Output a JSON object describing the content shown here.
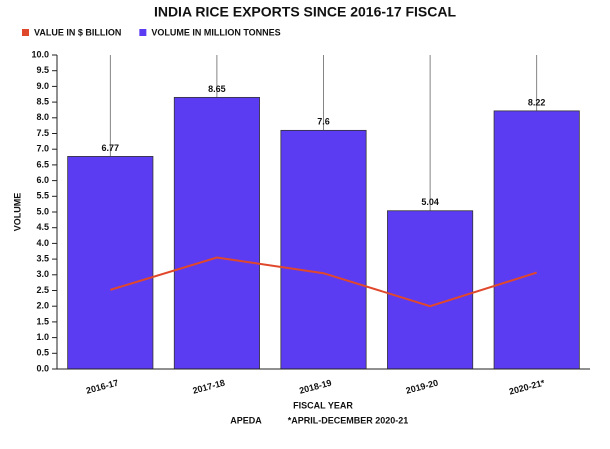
{
  "chart_data": {
    "type": "bar",
    "title": "INDIA RICE EXPORTS SINCE 2016-17 FISCAL",
    "x_label": "FISCAL YEAR",
    "y_label": "VOLUME",
    "footnote_source": "APEDA",
    "footnote": "*APRIL-DECEMBER 2020-21",
    "categories": [
      "2016-17",
      "2017-18",
      "2018-19",
      "2019-20",
      "2020-21*"
    ],
    "series": [
      {
        "name": "VALUE IN $ BILLION",
        "type": "line",
        "color": "#e0482c",
        "values": [
          2.52,
          3.55,
          3.05,
          2.0,
          3.07
        ]
      },
      {
        "name": "VOLUME IN MILLION TONNES",
        "type": "bar",
        "color": "#5c3cf2",
        "values": [
          6.77,
          8.65,
          7.6,
          5.04,
          8.22
        ]
      }
    ],
    "ylim": [
      0,
      10
    ],
    "yticks": [
      {
        "value": 0,
        "label": "0.0"
      },
      0.5,
      {
        "value": 1,
        "label": "1.0"
      },
      1.5,
      {
        "value": 2,
        "label": "2.0"
      },
      2.5,
      {
        "value": 3,
        "label": "3.0"
      },
      3.5,
      {
        "value": 4,
        "label": "4.0"
      },
      4.5,
      {
        "value": 5,
        "label": "5.0"
      },
      5.5,
      {
        "value": 6,
        "label": "6.0"
      },
      6.5,
      {
        "value": 7,
        "label": "7.0"
      },
      7.5,
      {
        "value": 8,
        "label": "8.0"
      },
      8.5,
      {
        "value": 9,
        "label": "9.0"
      },
      9.5,
      {
        "value": 10,
        "label": "10.0"
      }
    ]
  }
}
